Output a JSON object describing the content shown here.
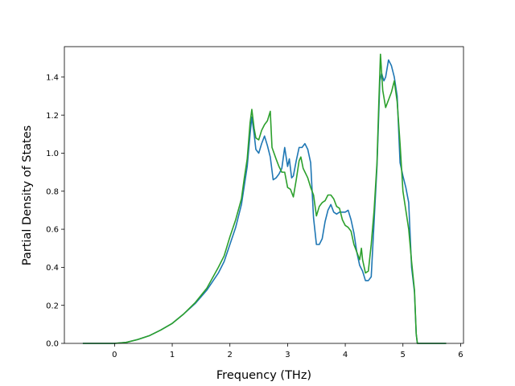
{
  "chart_data": {
    "type": "line",
    "xlabel": "Frequency (THz)",
    "ylabel": "Partial Density of States",
    "xlim": [
      -0.87,
      6.05
    ],
    "ylim": [
      0.0,
      1.56
    ],
    "x_ticks": [
      0,
      1,
      2,
      3,
      4,
      5,
      6
    ],
    "y_ticks": [
      0.0,
      0.2,
      0.4,
      0.6,
      0.8,
      1.0,
      1.2,
      1.4
    ],
    "x_tick_labels": [
      "0",
      "1",
      "2",
      "3",
      "4",
      "5",
      "6"
    ],
    "y_tick_labels": [
      "0.0",
      "0.2",
      "0.4",
      "0.6",
      "0.8",
      "1.0",
      "1.2",
      "1.4"
    ],
    "grid": false,
    "legend": "none",
    "series": [
      {
        "color": "#1f77b4",
        "points": [
          [
            -0.55,
            0.0
          ],
          [
            0.0,
            0.0
          ],
          [
            0.2,
            0.005
          ],
          [
            0.4,
            0.02
          ],
          [
            0.6,
            0.04
          ],
          [
            0.8,
            0.07
          ],
          [
            1.0,
            0.105
          ],
          [
            1.2,
            0.155
          ],
          [
            1.4,
            0.21
          ],
          [
            1.6,
            0.28
          ],
          [
            1.8,
            0.37
          ],
          [
            1.9,
            0.43
          ],
          [
            2.0,
            0.52
          ],
          [
            2.1,
            0.61
          ],
          [
            2.2,
            0.73
          ],
          [
            2.25,
            0.83
          ],
          [
            2.3,
            0.93
          ],
          [
            2.35,
            1.1
          ],
          [
            2.38,
            1.19
          ],
          [
            2.42,
            1.1
          ],
          [
            2.45,
            1.02
          ],
          [
            2.5,
            1.0
          ],
          [
            2.55,
            1.05
          ],
          [
            2.6,
            1.09
          ],
          [
            2.65,
            1.04
          ],
          [
            2.7,
            0.98
          ],
          [
            2.75,
            0.86
          ],
          [
            2.8,
            0.87
          ],
          [
            2.85,
            0.89
          ],
          [
            2.9,
            0.92
          ],
          [
            2.95,
            1.03
          ],
          [
            3.0,
            0.93
          ],
          [
            3.03,
            0.97
          ],
          [
            3.07,
            0.87
          ],
          [
            3.1,
            0.88
          ],
          [
            3.15,
            0.96
          ],
          [
            3.2,
            1.03
          ],
          [
            3.25,
            1.03
          ],
          [
            3.3,
            1.05
          ],
          [
            3.35,
            1.02
          ],
          [
            3.4,
            0.95
          ],
          [
            3.45,
            0.66
          ],
          [
            3.5,
            0.52
          ],
          [
            3.55,
            0.52
          ],
          [
            3.6,
            0.55
          ],
          [
            3.65,
            0.64
          ],
          [
            3.7,
            0.7
          ],
          [
            3.75,
            0.73
          ],
          [
            3.8,
            0.69
          ],
          [
            3.85,
            0.68
          ],
          [
            3.9,
            0.69
          ],
          [
            4.0,
            0.69
          ],
          [
            4.05,
            0.7
          ],
          [
            4.1,
            0.65
          ],
          [
            4.15,
            0.58
          ],
          [
            4.2,
            0.48
          ],
          [
            4.25,
            0.41
          ],
          [
            4.3,
            0.38
          ],
          [
            4.35,
            0.33
          ],
          [
            4.4,
            0.33
          ],
          [
            4.45,
            0.35
          ],
          [
            4.5,
            0.64
          ],
          [
            4.55,
            0.93
          ],
          [
            4.6,
            1.38
          ],
          [
            4.63,
            1.42
          ],
          [
            4.67,
            1.38
          ],
          [
            4.7,
            1.4
          ],
          [
            4.75,
            1.49
          ],
          [
            4.8,
            1.46
          ],
          [
            4.85,
            1.4
          ],
          [
            4.9,
            1.3
          ],
          [
            4.95,
            0.95
          ],
          [
            5.0,
            0.88
          ],
          [
            5.05,
            0.82
          ],
          [
            5.1,
            0.74
          ],
          [
            5.15,
            0.4
          ],
          [
            5.2,
            0.27
          ],
          [
            5.23,
            0.05
          ],
          [
            5.25,
            0.0
          ],
          [
            5.75,
            0.0
          ]
        ]
      },
      {
        "color": "#2ca02c",
        "points": [
          [
            -0.55,
            0.0
          ],
          [
            0.0,
            0.0
          ],
          [
            0.2,
            0.005
          ],
          [
            0.4,
            0.02
          ],
          [
            0.6,
            0.04
          ],
          [
            0.8,
            0.07
          ],
          [
            1.0,
            0.105
          ],
          [
            1.2,
            0.155
          ],
          [
            1.4,
            0.215
          ],
          [
            1.6,
            0.29
          ],
          [
            1.8,
            0.4
          ],
          [
            1.9,
            0.46
          ],
          [
            2.0,
            0.56
          ],
          [
            2.1,
            0.65
          ],
          [
            2.2,
            0.76
          ],
          [
            2.25,
            0.87
          ],
          [
            2.3,
            0.97
          ],
          [
            2.35,
            1.16
          ],
          [
            2.38,
            1.23
          ],
          [
            2.42,
            1.13
          ],
          [
            2.45,
            1.08
          ],
          [
            2.5,
            1.07
          ],
          [
            2.55,
            1.12
          ],
          [
            2.6,
            1.15
          ],
          [
            2.65,
            1.17
          ],
          [
            2.7,
            1.22
          ],
          [
            2.73,
            1.03
          ],
          [
            2.8,
            0.97
          ],
          [
            2.85,
            0.93
          ],
          [
            2.9,
            0.9
          ],
          [
            2.95,
            0.9
          ],
          [
            3.0,
            0.82
          ],
          [
            3.05,
            0.81
          ],
          [
            3.1,
            0.77
          ],
          [
            3.15,
            0.86
          ],
          [
            3.2,
            0.96
          ],
          [
            3.23,
            0.98
          ],
          [
            3.27,
            0.92
          ],
          [
            3.35,
            0.87
          ],
          [
            3.4,
            0.82
          ],
          [
            3.45,
            0.78
          ],
          [
            3.5,
            0.67
          ],
          [
            3.55,
            0.72
          ],
          [
            3.6,
            0.74
          ],
          [
            3.65,
            0.75
          ],
          [
            3.7,
            0.78
          ],
          [
            3.75,
            0.78
          ],
          [
            3.8,
            0.76
          ],
          [
            3.85,
            0.72
          ],
          [
            3.9,
            0.71
          ],
          [
            3.95,
            0.65
          ],
          [
            4.0,
            0.62
          ],
          [
            4.05,
            0.61
          ],
          [
            4.1,
            0.59
          ],
          [
            4.15,
            0.52
          ],
          [
            4.2,
            0.48
          ],
          [
            4.25,
            0.44
          ],
          [
            4.28,
            0.5
          ],
          [
            4.3,
            0.44
          ],
          [
            4.35,
            0.37
          ],
          [
            4.4,
            0.38
          ],
          [
            4.45,
            0.52
          ],
          [
            4.5,
            0.7
          ],
          [
            4.55,
            0.95
          ],
          [
            4.58,
            1.25
          ],
          [
            4.61,
            1.52
          ],
          [
            4.65,
            1.33
          ],
          [
            4.7,
            1.24
          ],
          [
            4.75,
            1.28
          ],
          [
            4.8,
            1.32
          ],
          [
            4.85,
            1.38
          ],
          [
            4.9,
            1.27
          ],
          [
            4.95,
            1.05
          ],
          [
            5.0,
            0.8
          ],
          [
            5.05,
            0.7
          ],
          [
            5.1,
            0.6
          ],
          [
            5.15,
            0.43
          ],
          [
            5.2,
            0.28
          ],
          [
            5.23,
            0.05
          ],
          [
            5.25,
            0.0
          ],
          [
            5.75,
            0.0
          ]
        ]
      }
    ]
  }
}
